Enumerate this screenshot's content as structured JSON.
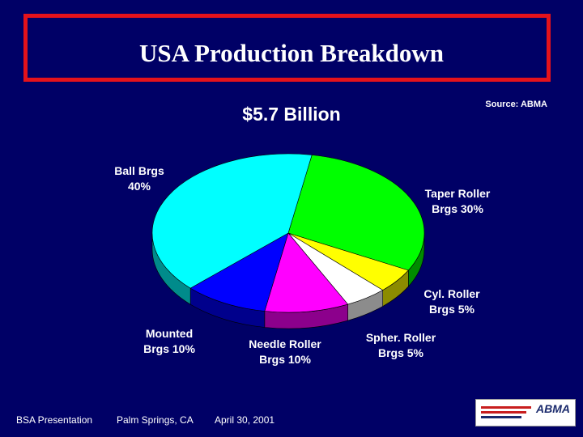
{
  "header": {
    "title": "USA Production Breakdown"
  },
  "source": "Source: ABMA",
  "chart_data": {
    "type": "pie",
    "title": "$5.7 Billion",
    "slices": [
      {
        "label_line1": "Ball Brgs",
        "label_line2": "40%",
        "value": 40,
        "color": "#00ffff",
        "side": "#008b8b"
      },
      {
        "label_line1": "Taper Roller",
        "label_line2": "Brgs 30%",
        "value": 30,
        "color": "#00ff00",
        "side": "#008c00"
      },
      {
        "label_line1": "Cyl. Roller",
        "label_line2": "Brgs 5%",
        "value": 5,
        "color": "#ffff00",
        "side": "#8c8c00"
      },
      {
        "label_line1": "Spher. Roller",
        "label_line2": "Brgs 5%",
        "value": 5,
        "color": "#ffffff",
        "side": "#8c8c8c"
      },
      {
        "label_line1": "Needle Roller",
        "label_line2": "Brgs 10%",
        "value": 10,
        "color": "#ff00ff",
        "side": "#8c008c"
      },
      {
        "label_line1": "Mounted",
        "label_line2": "Brgs 10%",
        "value": 10,
        "color": "#0000ff",
        "side": "#00008c"
      }
    ]
  },
  "footer": {
    "presenter": "BSA Presentation",
    "location": "Palm Springs, CA",
    "date": "April 30, 2001"
  },
  "logo": {
    "text": "ABMA"
  }
}
